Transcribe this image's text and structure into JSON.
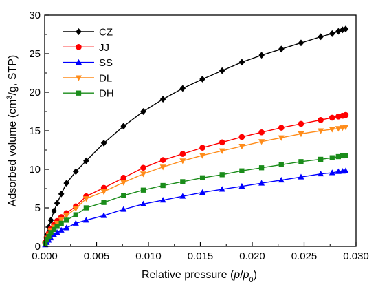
{
  "chart_data": {
    "type": "scatter",
    "title": "",
    "xlabel": {
      "pre": "Relative pressure (",
      "var_p": "p",
      "slash": "/",
      "var_p0": "p",
      "sub0": "0",
      "post": ")"
    },
    "ylabel": {
      "pre": "Adsorbed volume (cm",
      "sup": "3",
      "post": "/g, STP)"
    },
    "xlim": [
      0.0,
      0.03
    ],
    "ylim": [
      0,
      30
    ],
    "xticks": [
      "0.000",
      "0.005",
      "0.010",
      "0.015",
      "0.020",
      "0.025",
      "0.030"
    ],
    "yticks": [
      "0",
      "5",
      "10",
      "15",
      "20",
      "25",
      "30"
    ],
    "grid": false,
    "legend_position": "top-left",
    "series": [
      {
        "name": "CZ",
        "color": "#000000",
        "marker": "diamond",
        "x": [
          5e-05,
          0.0002,
          0.0004,
          0.0006,
          0.0009,
          0.0012,
          0.0016,
          0.0021,
          0.003,
          0.004,
          0.0057,
          0.0076,
          0.0095,
          0.0114,
          0.0133,
          0.0152,
          0.0171,
          0.019,
          0.0209,
          0.0228,
          0.0247,
          0.0266,
          0.0277,
          0.0283,
          0.0287,
          0.029
        ],
        "y": [
          0.6,
          1.5,
          2.5,
          3.4,
          4.6,
          5.6,
          6.8,
          8.2,
          9.7,
          11.1,
          13.4,
          15.6,
          17.5,
          19.1,
          20.5,
          21.7,
          22.8,
          23.9,
          24.8,
          25.6,
          26.4,
          27.2,
          27.6,
          27.9,
          28.1,
          28.2
        ]
      },
      {
        "name": "JJ",
        "color": "#ff0000",
        "marker": "circle",
        "x": [
          5e-05,
          0.0002,
          0.0004,
          0.0006,
          0.0009,
          0.0012,
          0.0016,
          0.0021,
          0.003,
          0.004,
          0.0057,
          0.0076,
          0.0095,
          0.0114,
          0.0133,
          0.0152,
          0.0171,
          0.019,
          0.0209,
          0.0228,
          0.0247,
          0.0266,
          0.0277,
          0.0283,
          0.0287,
          0.029
        ],
        "y": [
          0.5,
          1.1,
          1.7,
          2.3,
          2.8,
          3.3,
          3.8,
          4.3,
          5.2,
          6.5,
          7.6,
          8.9,
          10.2,
          11.2,
          12.0,
          12.8,
          13.5,
          14.2,
          14.8,
          15.4,
          15.9,
          16.4,
          16.7,
          16.85,
          16.95,
          17.05
        ]
      },
      {
        "name": "SS",
        "color": "#0000ff",
        "marker": "triangle-up",
        "x": [
          5e-05,
          0.0002,
          0.0004,
          0.0006,
          0.0009,
          0.0012,
          0.0016,
          0.0021,
          0.003,
          0.004,
          0.0057,
          0.0076,
          0.0095,
          0.0114,
          0.0133,
          0.0152,
          0.0171,
          0.019,
          0.0209,
          0.0228,
          0.0247,
          0.0266,
          0.0277,
          0.0283,
          0.0287,
          0.029
        ],
        "y": [
          0.2,
          0.5,
          0.8,
          1.1,
          1.5,
          1.8,
          2.1,
          2.4,
          3.0,
          3.4,
          4.0,
          4.8,
          5.5,
          6.0,
          6.5,
          7.0,
          7.4,
          7.8,
          8.2,
          8.6,
          9.0,
          9.4,
          9.55,
          9.7,
          9.75,
          9.8
        ]
      },
      {
        "name": "DL",
        "color": "#ff8c1a",
        "marker": "triangle-down",
        "x": [
          5e-05,
          0.0002,
          0.0004,
          0.0006,
          0.0009,
          0.0012,
          0.0016,
          0.0021,
          0.003,
          0.004,
          0.0057,
          0.0076,
          0.0095,
          0.0114,
          0.0133,
          0.0152,
          0.0171,
          0.019,
          0.0209,
          0.0228,
          0.0247,
          0.0266,
          0.0277,
          0.0283,
          0.0287,
          0.029
        ],
        "y": [
          0.4,
          1.0,
          1.5,
          2.0,
          2.5,
          3.0,
          3.5,
          4.0,
          4.9,
          6.2,
          7.1,
          8.3,
          9.4,
          10.3,
          11.1,
          11.8,
          12.4,
          13.0,
          13.6,
          14.1,
          14.6,
          15.0,
          15.2,
          15.3,
          15.4,
          15.5
        ]
      },
      {
        "name": "DH",
        "color": "#1a8c1a",
        "marker": "square",
        "x": [
          5e-05,
          0.0002,
          0.0004,
          0.0006,
          0.0009,
          0.0012,
          0.0016,
          0.0021,
          0.003,
          0.004,
          0.0057,
          0.0076,
          0.0095,
          0.0114,
          0.0133,
          0.0152,
          0.0171,
          0.019,
          0.0209,
          0.0228,
          0.0247,
          0.0266,
          0.0277,
          0.0283,
          0.0287,
          0.029
        ],
        "y": [
          0.4,
          0.9,
          1.3,
          1.8,
          2.2,
          2.6,
          3.0,
          3.4,
          4.1,
          5.0,
          5.7,
          6.6,
          7.3,
          7.9,
          8.4,
          8.9,
          9.3,
          9.8,
          10.2,
          10.6,
          11.0,
          11.3,
          11.5,
          11.65,
          11.75,
          11.8
        ]
      }
    ]
  }
}
